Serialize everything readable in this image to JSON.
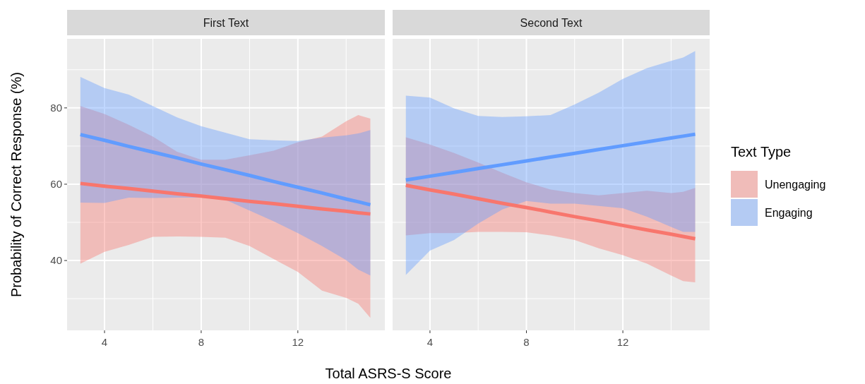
{
  "chart_data": [
    {
      "type": "line",
      "title": "First Text",
      "xlabel": "Total ASRS-S Score",
      "ylabel": "Probability of Correct Response (%)",
      "xlim": [
        2.45,
        15.6
      ],
      "ylim": [
        21.7,
        98.1
      ],
      "xticks": [
        4,
        {
          "value": 6,
          "label": null
        },
        8,
        {
          "value": 10,
          "label": null
        },
        12,
        {
          "value": 14,
          "label": null
        }
      ],
      "yticks": [
        {
          "value": 30,
          "label": null
        },
        40,
        {
          "value": 50,
          "label": null
        },
        60,
        {
          "value": 70,
          "label": null
        },
        80,
        {
          "value": 90,
          "label": null
        }
      ],
      "grid": true,
      "legend": false,
      "series": [
        {
          "color": "#f8766d",
          "x": [
            3,
            4,
            5,
            6,
            7,
            8,
            9,
            10,
            11,
            12,
            13,
            14,
            14.5,
            15
          ],
          "values": [
            60.2,
            59.5,
            58.9,
            58.2,
            57.5,
            56.9,
            56.2,
            55.5,
            54.9,
            54.2,
            53.5,
            52.9,
            52.5,
            52.2
          ],
          "lower": [
            39.2,
            42.3,
            44.1,
            46.2,
            46.3,
            46.2,
            46.0,
            43.8,
            40.4,
            37.0,
            32.1,
            30.2,
            28.7,
            25.0
          ],
          "upper": [
            80.5,
            78.4,
            75.6,
            72.5,
            68.5,
            66.4,
            66.4,
            67.6,
            68.8,
            71.0,
            72.5,
            76.5,
            78.1,
            77.2
          ]
        },
        {
          "color": "#619cff",
          "x": [
            3,
            4,
            5,
            6,
            7,
            8,
            9,
            10,
            11,
            12,
            13,
            14,
            14.5,
            15
          ],
          "values": [
            73.0,
            71.5,
            69.9,
            68.4,
            66.9,
            65.3,
            63.8,
            62.3,
            60.7,
            59.2,
            57.7,
            56.1,
            55.4,
            54.6
          ],
          "lower": [
            55.2,
            55.1,
            56.5,
            56.4,
            56.5,
            56.5,
            55.9,
            53.1,
            50.3,
            47.2,
            43.8,
            40.1,
            37.6,
            36.1
          ],
          "upper": [
            88.1,
            85.2,
            83.5,
            80.5,
            77.5,
            75.2,
            73.5,
            71.8,
            71.5,
            71.3,
            72.2,
            72.8,
            73.3,
            74.2
          ]
        }
      ]
    },
    {
      "type": "line",
      "title": "Second Text",
      "legend_title": "Text Type",
      "xlim": [
        2.45,
        15.6
      ],
      "ylim": [
        21.7,
        98.1
      ],
      "xticks": [
        4,
        {
          "value": 6,
          "label": null
        },
        8,
        {
          "value": 10,
          "label": null
        },
        12,
        {
          "value": 14,
          "label": null
        }
      ],
      "yticks": [
        {
          "value": 30,
          "label": null
        },
        40,
        {
          "value": 50,
          "label": null
        },
        60,
        {
          "value": 70,
          "label": null
        },
        80,
        {
          "value": 90,
          "label": null
        }
      ],
      "tick_labels": "x",
      "grid": true,
      "legend": "right",
      "series": [
        {
          "name": "Unengaging",
          "color": "#f8766d",
          "x": [
            3,
            4,
            5,
            6,
            7,
            8,
            9,
            10,
            11,
            12,
            13,
            14,
            14.5,
            15
          ],
          "values": [
            59.7,
            58.5,
            57.4,
            56.2,
            55.0,
            53.9,
            52.7,
            51.5,
            50.4,
            49.2,
            48.0,
            46.9,
            46.3,
            45.7
          ],
          "lower": [
            46.6,
            47.2,
            47.2,
            47.5,
            47.5,
            47.4,
            46.6,
            45.4,
            43.2,
            41.4,
            39.2,
            36.1,
            34.6,
            34.3
          ],
          "upper": [
            72.3,
            70.4,
            68.2,
            65.7,
            63.0,
            60.5,
            58.6,
            57.7,
            57.1,
            57.7,
            58.3,
            57.7,
            58.0,
            59.0
          ]
        },
        {
          "name": "Engaging",
          "color": "#619cff",
          "x": [
            3,
            4,
            5,
            6,
            7,
            8,
            9,
            10,
            11,
            12,
            13,
            14,
            14.5,
            15
          ],
          "values": [
            61.1,
            62.1,
            63.1,
            64.1,
            65.1,
            66.1,
            67.1,
            68.1,
            69.1,
            70.1,
            71.1,
            72.1,
            72.6,
            73.1
          ],
          "lower": [
            36.2,
            42.6,
            45.4,
            49.7,
            53.4,
            55.6,
            54.9,
            54.9,
            54.3,
            53.7,
            51.5,
            48.8,
            47.5,
            47.5
          ],
          "upper": [
            83.2,
            82.7,
            79.9,
            77.9,
            77.6,
            77.8,
            78.1,
            80.9,
            84.0,
            87.6,
            90.4,
            92.3,
            93.2,
            94.9
          ]
        }
      ]
    }
  ]
}
